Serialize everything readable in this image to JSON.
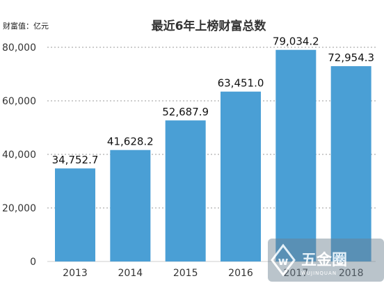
{
  "colors": {
    "bar": "#4a9fd5",
    "grid": "#9a9a9a",
    "text": "#333333"
  },
  "chart_data": {
    "type": "bar",
    "title": "最近6年上榜财富总数",
    "unit_label": "财富值：亿元",
    "categories": [
      "2013",
      "2014",
      "2015",
      "2016",
      "2017",
      "2018"
    ],
    "values": [
      34752.7,
      41628.2,
      52687.9,
      63451.0,
      79034.2,
      72954.3
    ],
    "value_labels": [
      "34,752.7",
      "41,628.2",
      "52,687.9",
      "63,451.0",
      "79,034.2",
      "72,954.3"
    ],
    "yticks": [
      "0",
      "20,000",
      "40,000",
      "60,000",
      "80,000"
    ],
    "ylim": [
      0,
      80000
    ],
    "grid": true,
    "legend": "none"
  },
  "watermark": {
    "brand": "五金圈",
    "sub": "WUJINQUAN",
    "icon": "w-logo-icon"
  }
}
